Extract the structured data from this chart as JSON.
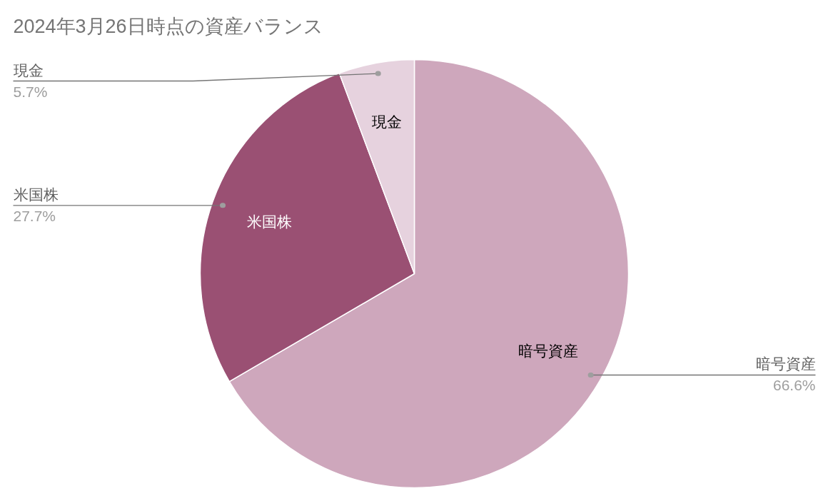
{
  "chart_data": {
    "type": "pie",
    "title": "2024年3月26日時点の資産バランス",
    "categories": [
      "暗号資産",
      "米国株",
      "現金"
    ],
    "values": [
      66.6,
      27.7,
      5.7
    ],
    "colors": [
      "#cea7bc",
      "#9a5073",
      "#e6d2de"
    ],
    "value_labels": [
      "66.6%",
      "27.7%",
      "5.7%"
    ]
  }
}
